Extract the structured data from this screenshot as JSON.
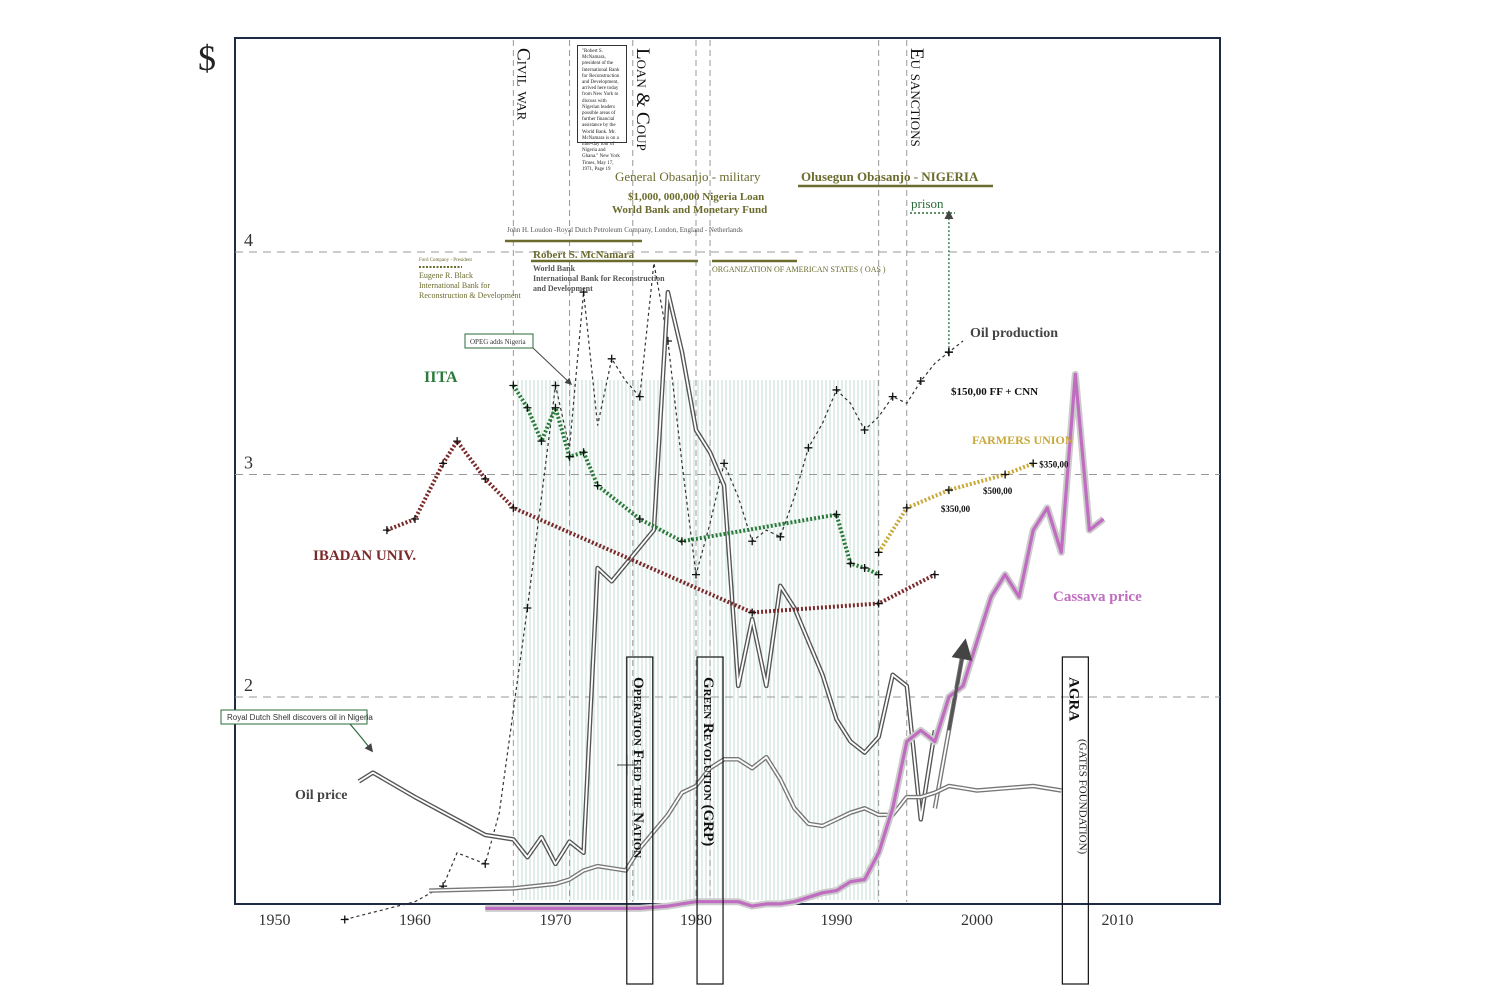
{
  "chart_data": {
    "type": "line",
    "title": "",
    "y_axis": {
      "unit_label": "$",
      "ticks": [
        "2",
        "3",
        "4"
      ]
    },
    "x_axis": {
      "ticks": [
        "1950",
        "1960",
        "1970",
        "1980",
        "1990",
        "2000",
        "2010"
      ]
    },
    "grid": "dashed horizontal at 2, 3, 4",
    "events": [
      {
        "label": "Civil war",
        "year": 1967
      },
      {
        "label": "Loan & Coup",
        "year": 1975.5
      },
      {
        "label": "Eu sanctions",
        "year": 1995
      }
    ],
    "period_boxes": [
      {
        "label": "Operation Feed the Nation",
        "year": 1976
      },
      {
        "label": "Green Revolution (GRP)",
        "year": 1981
      },
      {
        "label": "AGRA",
        "sub": "(GATES FOUNDATION)",
        "year": 2007
      }
    ],
    "quote": "\"Robert S. McNamara, president of the International Bank for Reconstruction and Development, arrived here today from New York to discuss with Nigerian leaders possible areas of further financial assistance by the World Bank. Mr. McNamara is on a nine-day tour of Nigeria and Ghana.\" New York Times, May 17, 1971, Page 19",
    "figures": [
      {
        "name": "General Obasanjo - military",
        "lines": [
          "$1,000, 000,000 Nigeria Loan",
          "World Bank and Monetary Fund"
        ]
      },
      {
        "name": "Olusegun Obasanjo - NIGERIA",
        "lines": [
          "prison"
        ]
      },
      {
        "name": "John H. Loudon -Royal Dutch Petroleum Company, London, England - Netherlands",
        "lines": []
      },
      {
        "name": "Robert S. McNamara",
        "lines": [
          "World Bank",
          "International Bank for Reconstruction",
          "and Development"
        ]
      },
      {
        "name": "ORGANIZATION OF AMERICAN STATES ( OAS )",
        "lines": []
      },
      {
        "name": "Eugene R. Black",
        "role": "Ford Company - President",
        "lines": [
          "International Bank for",
          "Reconstruction & Development"
        ]
      }
    ],
    "callouts": [
      "OPEG adds Nigeria",
      "Royal Dutch Shell discovers oil in Nigeria",
      "$150,00 FF + CNN"
    ],
    "series": [
      {
        "name": "Oil production",
        "color": "#333333",
        "style": "dashed",
        "x": [
          1955,
          1960,
          1962,
          1963,
          1965,
          1966,
          1968,
          1969,
          1970,
          1971,
          1972,
          1973,
          1974,
          1975,
          1976,
          1977,
          1978,
          1979,
          1980,
          1981,
          1982,
          1983,
          1984,
          1985,
          1986,
          1987,
          1988,
          1989,
          1990,
          1991,
          1992,
          1993,
          1994,
          1995,
          1996,
          1997,
          1998,
          1999
        ],
        "y": [
          1.0,
          1.08,
          1.15,
          1.3,
          1.25,
          1.48,
          2.4,
          2.9,
          3.4,
          3.12,
          3.82,
          3.22,
          3.52,
          3.42,
          3.35,
          3.95,
          3.6,
          3.05,
          2.55,
          2.78,
          3.05,
          2.9,
          2.7,
          2.75,
          2.72,
          2.9,
          3.12,
          3.23,
          3.38,
          3.32,
          3.2,
          3.26,
          3.35,
          3.32,
          3.42,
          3.5,
          3.55,
          3.6
        ]
      },
      {
        "name": "Oil price",
        "color": "#555555",
        "style": "double",
        "x": [
          1956,
          1957,
          1960,
          1965,
          1967,
          1968,
          1969,
          1970,
          1971,
          1972,
          1973,
          1974,
          1977,
          1978,
          1979,
          1980,
          1981,
          1982,
          1983,
          1984,
          1985,
          1986,
          1987,
          1988,
          1989,
          1990,
          1991,
          1992,
          1993,
          1994,
          1995,
          1996,
          1997
        ],
        "y": [
          1.62,
          1.66,
          1.55,
          1.38,
          1.36,
          1.28,
          1.37,
          1.25,
          1.35,
          1.3,
          2.58,
          2.52,
          2.75,
          3.82,
          3.55,
          3.2,
          3.1,
          2.95,
          2.05,
          2.35,
          2.05,
          2.5,
          2.4,
          2.25,
          2.1,
          1.9,
          1.8,
          1.75,
          1.82,
          2.1,
          2.05,
          1.45,
          1.85
        ]
      },
      {
        "name": "Oil price trend",
        "color": "#777777",
        "style": "double",
        "x": [
          1997,
          1998,
          1999
        ],
        "y": [
          1.5,
          1.85,
          2.2
        ]
      },
      {
        "name": "",
        "color": "#777777",
        "style": "double",
        "x": [
          1961,
          1967,
          1970,
          1971,
          1972,
          1973,
          1974,
          1975,
          1976,
          1978,
          1979,
          1980,
          1981,
          1982,
          1983,
          1984,
          1985,
          1986,
          1987,
          1988,
          1989,
          1990,
          1991,
          1992,
          1993,
          1994,
          1995,
          1996,
          1997,
          1998,
          1999,
          2000,
          2004,
          2006
        ],
        "y": [
          1.13,
          1.14,
          1.16,
          1.18,
          1.22,
          1.24,
          1.23,
          1.22,
          1.32,
          1.47,
          1.57,
          1.6,
          1.68,
          1.72,
          1.72,
          1.68,
          1.73,
          1.63,
          1.5,
          1.43,
          1.42,
          1.45,
          1.48,
          1.5,
          1.47,
          1.47,
          1.55,
          1.55,
          1.57,
          1.6,
          1.59,
          1.58,
          1.6,
          1.58
        ]
      },
      {
        "name": "Cassava price",
        "color": "#c06cc0",
        "style": "solid",
        "x": [
          1965,
          1968,
          1970,
          1972,
          1974,
          1976,
          1978,
          1980,
          1983,
          1984,
          1985,
          1986,
          1987,
          1988,
          1989,
          1990,
          1991,
          1992,
          1993,
          1994,
          1995,
          1996,
          1997,
          1998,
          1999,
          2000,
          2001,
          2002,
          2003,
          2004,
          2005,
          2006,
          2007,
          2008,
          2009
        ],
        "y": [
          1.05,
          1.05,
          1.05,
          1.05,
          1.05,
          1.05,
          1.06,
          1.08,
          1.08,
          1.06,
          1.07,
          1.07,
          1.08,
          1.1,
          1.12,
          1.13,
          1.17,
          1.18,
          1.3,
          1.5,
          1.8,
          1.85,
          1.8,
          2.0,
          2.05,
          2.25,
          2.45,
          2.55,
          2.45,
          2.75,
          2.85,
          2.65,
          3.45,
          2.75,
          2.8
        ]
      },
      {
        "name": "IITA",
        "color": "#2b7a3a",
        "style": "dotted",
        "x": [
          1967,
          1968,
          1969,
          1970,
          1971,
          1972,
          1973,
          1976,
          1979,
          1990,
          1991,
          1992,
          1993
        ],
        "y": [
          3.4,
          3.3,
          3.15,
          3.3,
          3.08,
          3.1,
          2.95,
          2.8,
          2.7,
          2.82,
          2.6,
          2.58,
          2.55
        ]
      },
      {
        "name": "IBADAN UNIV.",
        "color": "#7a2a2a",
        "style": "dotted",
        "x": [
          1958,
          1960,
          1962,
          1963,
          1965,
          1967,
          1984,
          1993,
          1997
        ],
        "y": [
          2.75,
          2.8,
          3.05,
          3.15,
          2.98,
          2.85,
          2.38,
          2.42,
          2.55
        ]
      },
      {
        "name": "FARMERS UNION",
        "color": "#c9a83a",
        "style": "dotted",
        "x": [
          1993,
          1995,
          1998,
          2002,
          2004
        ],
        "y": [
          2.65,
          2.85,
          2.93,
          3.0,
          3.05
        ]
      }
    ],
    "data_labels": [
      {
        "text": "$350,00",
        "x": 2004,
        "y": 3.05
      },
      {
        "text": "$500,00",
        "x": 2000,
        "y": 2.93
      },
      {
        "text": "$350,00",
        "x": 1997,
        "y": 2.85
      }
    ],
    "legend_labels": {
      "oil_production": "Oil production",
      "oil_price": "Oil price",
      "cassava_price": "Cassava price",
      "iita": "IITA",
      "ibadan": "IBADAN UNIV.",
      "farmers_union": "FARMERS UNION"
    },
    "colors": {
      "frame": "#1e2b44",
      "olive": "#6b6b2e",
      "green": "#2b7a3a",
      "maroon": "#7a2a2a",
      "pink": "#c06cc0",
      "gold": "#c9a83a",
      "hatch": "#a9cfc3"
    }
  }
}
